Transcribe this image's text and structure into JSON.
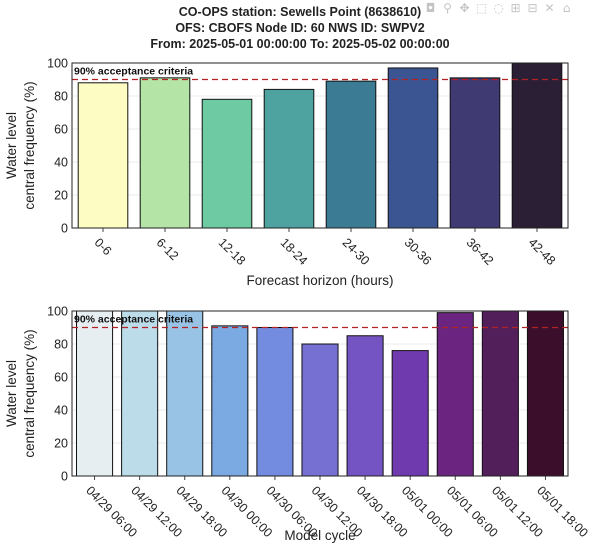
{
  "title_lines": [
    "CO-OPS station: Sewells Point (8638610)",
    "OFS: CBOFS   Node ID: 60   NWS ID: SWPV2",
    "From: 2025-05-01 00:00:00   To: 2025-05-02 00:00:00"
  ],
  "modebar": {
    "icons": [
      "camera-icon",
      "zoom-icon",
      "pan-icon",
      "box-select-icon",
      "lasso-select-icon",
      "zoom-in-icon",
      "zoom-out-icon",
      "autoscale-icon",
      "reset-axes-icon"
    ],
    "glyphs": [
      "◘",
      "⚲",
      "✥",
      "⬚",
      "◌",
      "⊞",
      "⊟",
      "✕",
      "⌂"
    ]
  },
  "criteria_label": "90% acceptance criteria",
  "criteria_value": 90,
  "criteria_color": "#b22222",
  "chart_data": [
    {
      "type": "bar",
      "xlabel": "Forecast horizon (hours)",
      "ylabel_lines": [
        "Water level",
        "central frequency (%)"
      ],
      "ylim": [
        0,
        100
      ],
      "yticks": [
        0,
        20,
        40,
        60,
        80,
        100
      ],
      "categories": [
        "0-6",
        "6-12",
        "12-18",
        "18-24",
        "24-30",
        "30-36",
        "36-42",
        "42-48"
      ],
      "values": [
        88,
        91,
        78,
        84,
        89,
        97,
        91,
        100
      ],
      "colors": [
        "#fdfdc3",
        "#b5e5a6",
        "#6ecaa2",
        "#4ea3a0",
        "#3b7c94",
        "#3b5492",
        "#3f3a72",
        "#2a1f34"
      ]
    },
    {
      "type": "bar",
      "xlabel": "Model cycle",
      "ylabel_lines": [
        "Water level",
        "central frequency (%)"
      ],
      "ylim": [
        0,
        100
      ],
      "yticks": [
        0,
        20,
        40,
        60,
        80,
        100
      ],
      "categories": [
        "04/29 06:00",
        "04/29 12:00",
        "04/29 18:00",
        "04/30 00:00",
        "04/30 06:00",
        "04/30 12:00",
        "04/30 18:00",
        "05/01 00:00",
        "05/01 06:00",
        "05/01 12:00",
        "05/01 18:00"
      ],
      "values": [
        100,
        100,
        100,
        91,
        90,
        80,
        85,
        76,
        99,
        100,
        100
      ],
      "colors": [
        "#e6eef1",
        "#bcdce9",
        "#98c3e4",
        "#7ba9e2",
        "#738ce0",
        "#7670d3",
        "#7454c2",
        "#6e3aae",
        "#6b2480",
        "#521f5a",
        "#3b0f2c"
      ]
    }
  ]
}
